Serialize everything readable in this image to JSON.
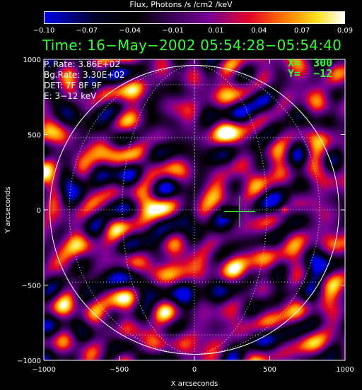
{
  "colorbar": {
    "title": "Flux, Photons /s /cm2 /keV",
    "ticks": [
      "−0.10",
      "−0.07",
      "−0.04",
      "−0.01",
      "0.01",
      "0.04",
      "0.07",
      "0.09"
    ],
    "range": [
      -0.1,
      0.09
    ]
  },
  "header": {
    "time_line": "Time: 16−May−2002 05:54:28−05:54:40"
  },
  "info": {
    "p_rate": "P. Rate:  3.86E+02",
    "bg_rate": "Bg.Rate:  3.30E+02",
    "det": "DET: 7F 8F 9F",
    "energy": "E: 3−12 keV"
  },
  "cursor": {
    "x_label": "X=  300",
    "y_label": "Y=  −12",
    "x": 300,
    "y": -12
  },
  "chart_data": {
    "type": "heatmap",
    "title": "",
    "xlabel": "X arcseconds",
    "ylabel": "Y arcseconds",
    "xlim": [
      -1000,
      1000
    ],
    "ylim": [
      -1000,
      1000
    ],
    "x_ticks": [
      -1000,
      -500,
      0,
      500,
      1000
    ],
    "y_ticks": [
      -1000,
      -500,
      0,
      500,
      1000
    ],
    "x_tick_labels": [
      "−1000",
      "−500",
      "0",
      "500",
      "1000"
    ],
    "y_tick_labels": [
      "−1000",
      "−500",
      "0",
      "500",
      "1000"
    ],
    "solar_limb_radius": 960,
    "grid": "dotted heliographic grid",
    "colormap": "blue-black-purple-red-yellow-white",
    "colors": {
      "limb": "#ffffff",
      "grid": "#cccccc",
      "cursor": "#33ff33",
      "text_green": "#33ff33"
    }
  }
}
